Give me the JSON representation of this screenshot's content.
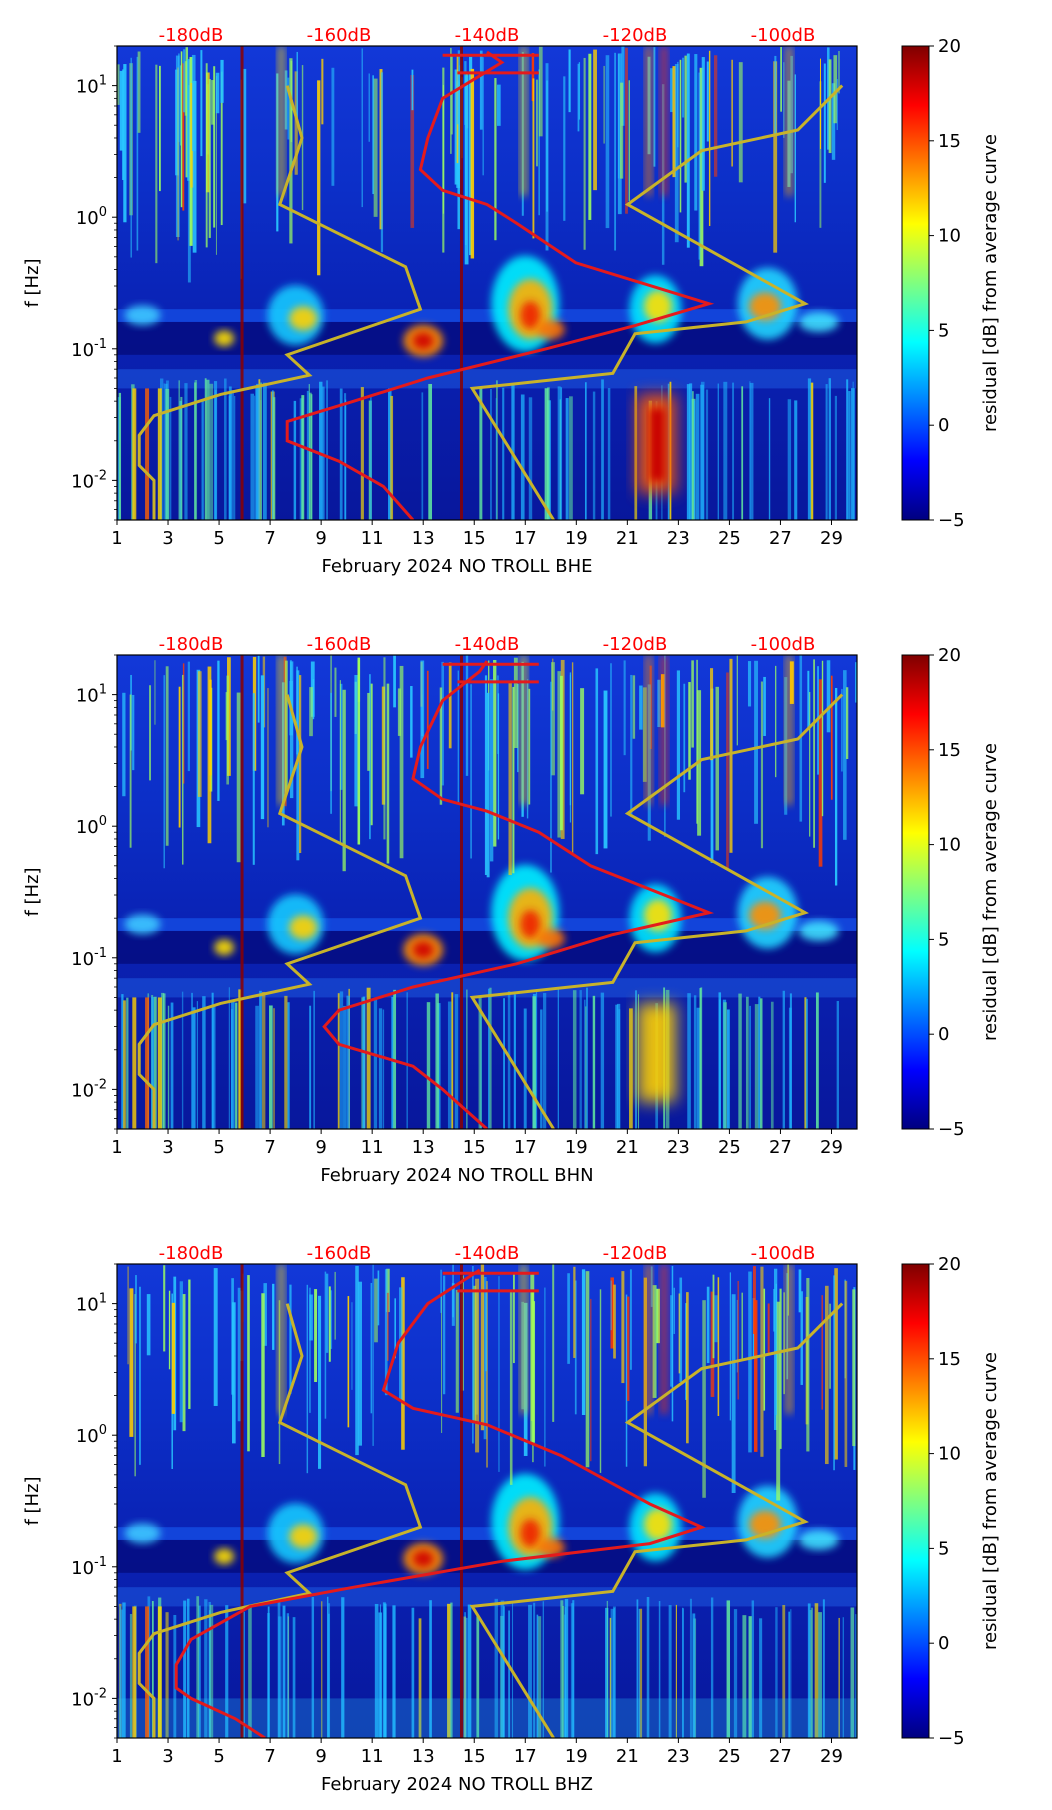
{
  "figure": {
    "panels": [
      {
        "xlabel": "February 2024 NO TROLL  BHE",
        "ylabel": "f [Hz]",
        "colorbar_label": "residual [dB] from average curve"
      },
      {
        "xlabel": "February 2024 NO TROLL  BHN",
        "ylabel": "f [Hz]",
        "colorbar_label": "residual [dB] from average curve"
      },
      {
        "xlabel": "February 2024 NO TROLL  BHZ",
        "ylabel": "f [Hz]",
        "colorbar_label": "residual [dB] from average curve"
      }
    ],
    "colors": {
      "median_curve": "#e41a1c",
      "noise_model": "#c8b32a",
      "top_labels": "#ff0000",
      "vline": "#8b0000"
    }
  },
  "chart_data": [
    {
      "type": "heatmap",
      "title": "",
      "xlabel": "February 2024 NO TROLL  BHE",
      "ylabel": "f [Hz]",
      "xticks": [
        "1",
        "3",
        "5",
        "7",
        "9",
        "11",
        "13",
        "15",
        "17",
        "19",
        "21",
        "23",
        "25",
        "27",
        "29"
      ],
      "xlim": [
        1,
        30
      ],
      "yticks": [
        "10^-2",
        "10^-1",
        "10^0",
        "10^1"
      ],
      "ylim": [
        0.005,
        20
      ],
      "yscale": "log",
      "top_axis_labels": [
        "-180dB",
        "-160dB",
        "-140dB",
        "-120dB",
        "-100dB"
      ],
      "top_axis_range_dB": [
        -190,
        -90
      ],
      "colorbar": {
        "label": "residual [dB] from average curve",
        "ticks": [
          20,
          15,
          10,
          5,
          0,
          -5
        ],
        "range": [
          -5,
          20
        ]
      },
      "vertical_lines_day": [
        5.9,
        14.5
      ],
      "series": [
        {
          "name": "noise model",
          "color": "#c8b32a",
          "points_dB_hz": [
            [
              -167,
              10
            ],
            [
              -165,
              4
            ],
            [
              -168,
              1.25
            ],
            [
              -151,
              0.42
            ],
            [
              -149,
              0.2
            ],
            [
              -167,
              0.09
            ],
            [
              -164,
              0.063
            ],
            [
              -176,
              0.045
            ],
            [
              -185,
              0.031
            ],
            [
              -187,
              0.022
            ],
            [
              -187,
              0.013
            ],
            [
              -185,
              0.01
            ],
            [
              -185,
              0.005
            ]
          ]
        },
        {
          "name": "noise model (high)",
          "color": "#c8b32a",
          "points_dB_hz": [
            [
              -92,
              10
            ],
            [
              -98,
              4.6
            ],
            [
              -111,
              3.2
            ],
            [
              -121,
              1.25
            ],
            [
              -97,
              0.22
            ],
            [
              -105,
              0.16
            ],
            [
              -120,
              0.13
            ],
            [
              -123,
              0.065
            ],
            [
              -142,
              0.05
            ],
            [
              -131,
              0.005
            ]
          ]
        },
        {
          "name": "median PSD",
          "color": "#e41a1c",
          "points_dB_hz": []
        }
      ]
    },
    {
      "type": "heatmap",
      "title": "",
      "xlabel": "February 2024 NO TROLL  BHN",
      "ylabel": "f [Hz]",
      "xticks": [
        "1",
        "3",
        "5",
        "7",
        "9",
        "11",
        "13",
        "15",
        "17",
        "19",
        "21",
        "23",
        "25",
        "27",
        "29"
      ],
      "xlim": [
        1,
        30
      ],
      "yticks": [
        "10^-2",
        "10^-1",
        "10^0",
        "10^1"
      ],
      "ylim": [
        0.005,
        20
      ],
      "yscale": "log",
      "top_axis_labels": [
        "-180dB",
        "-160dB",
        "-140dB",
        "-120dB",
        "-100dB"
      ],
      "top_axis_range_dB": [
        -190,
        -90
      ],
      "colorbar": {
        "label": "residual [dB] from average curve",
        "ticks": [
          20,
          15,
          10,
          5,
          0,
          -5
        ],
        "range": [
          -5,
          20
        ]
      },
      "vertical_lines_day": [
        5.9,
        14.5
      ],
      "series": [
        {
          "name": "noise model",
          "color": "#c8b32a",
          "points_dB_hz": [
            [
              -167,
              10
            ],
            [
              -165,
              4
            ],
            [
              -168,
              1.25
            ],
            [
              -151,
              0.42
            ],
            [
              -149,
              0.2
            ],
            [
              -167,
              0.09
            ],
            [
              -164,
              0.063
            ],
            [
              -176,
              0.045
            ],
            [
              -185,
              0.031
            ],
            [
              -187,
              0.022
            ],
            [
              -187,
              0.013
            ],
            [
              -185,
              0.01
            ],
            [
              -185,
              0.005
            ]
          ]
        },
        {
          "name": "noise model (high)",
          "color": "#c8b32a",
          "points_dB_hz": [
            [
              -92,
              10
            ],
            [
              -98,
              4.6
            ],
            [
              -111,
              3.2
            ],
            [
              -121,
              1.25
            ],
            [
              -97,
              0.22
            ],
            [
              -105,
              0.16
            ],
            [
              -120,
              0.13
            ],
            [
              -123,
              0.065
            ],
            [
              -142,
              0.05
            ],
            [
              -131,
              0.005
            ]
          ]
        },
        {
          "name": "median PSD",
          "color": "#e41a1c",
          "points_dB_hz": []
        }
      ]
    },
    {
      "type": "heatmap",
      "title": "",
      "xlabel": "February 2024 NO TROLL  BHZ",
      "ylabel": "f [Hz]",
      "xticks": [
        "1",
        "3",
        "5",
        "7",
        "9",
        "11",
        "13",
        "15",
        "17",
        "19",
        "21",
        "23",
        "25",
        "27",
        "29"
      ],
      "xlim": [
        1,
        30
      ],
      "yticks": [
        "10^-2",
        "10^-1",
        "10^0",
        "10^1"
      ],
      "ylim": [
        0.005,
        20
      ],
      "yscale": "log",
      "top_axis_labels": [
        "-180dB",
        "-160dB",
        "-140dB",
        "-120dB",
        "-100dB"
      ],
      "top_axis_range_dB": [
        -190,
        -90
      ],
      "colorbar": {
        "label": "residual [dB] from average curve",
        "ticks": [
          20,
          15,
          10,
          5,
          0,
          -5
        ],
        "range": [
          -5,
          20
        ]
      },
      "vertical_lines_day": [
        5.9,
        14.5
      ],
      "series": [
        {
          "name": "noise model",
          "color": "#c8b32a",
          "points_dB_hz": [
            [
              -167,
              10
            ],
            [
              -165,
              4
            ],
            [
              -168,
              1.25
            ],
            [
              -151,
              0.42
            ],
            [
              -149,
              0.2
            ],
            [
              -167,
              0.09
            ],
            [
              -164,
              0.063
            ],
            [
              -176,
              0.045
            ],
            [
              -185,
              0.031
            ],
            [
              -187,
              0.022
            ],
            [
              -187,
              0.013
            ],
            [
              -185,
              0.01
            ],
            [
              -185,
              0.005
            ]
          ]
        },
        {
          "name": "noise model (high)",
          "color": "#c8b32a",
          "points_dB_hz": [
            [
              -92,
              10
            ],
            [
              -98,
              4.6
            ],
            [
              -111,
              3.2
            ],
            [
              -121,
              1.25
            ],
            [
              -97,
              0.22
            ],
            [
              -105,
              0.16
            ],
            [
              -120,
              0.13
            ],
            [
              -123,
              0.065
            ],
            [
              -142,
              0.05
            ],
            [
              -131,
              0.005
            ]
          ]
        },
        {
          "name": "median PSD",
          "color": "#e41a1c",
          "points_dB_hz": []
        }
      ]
    }
  ]
}
